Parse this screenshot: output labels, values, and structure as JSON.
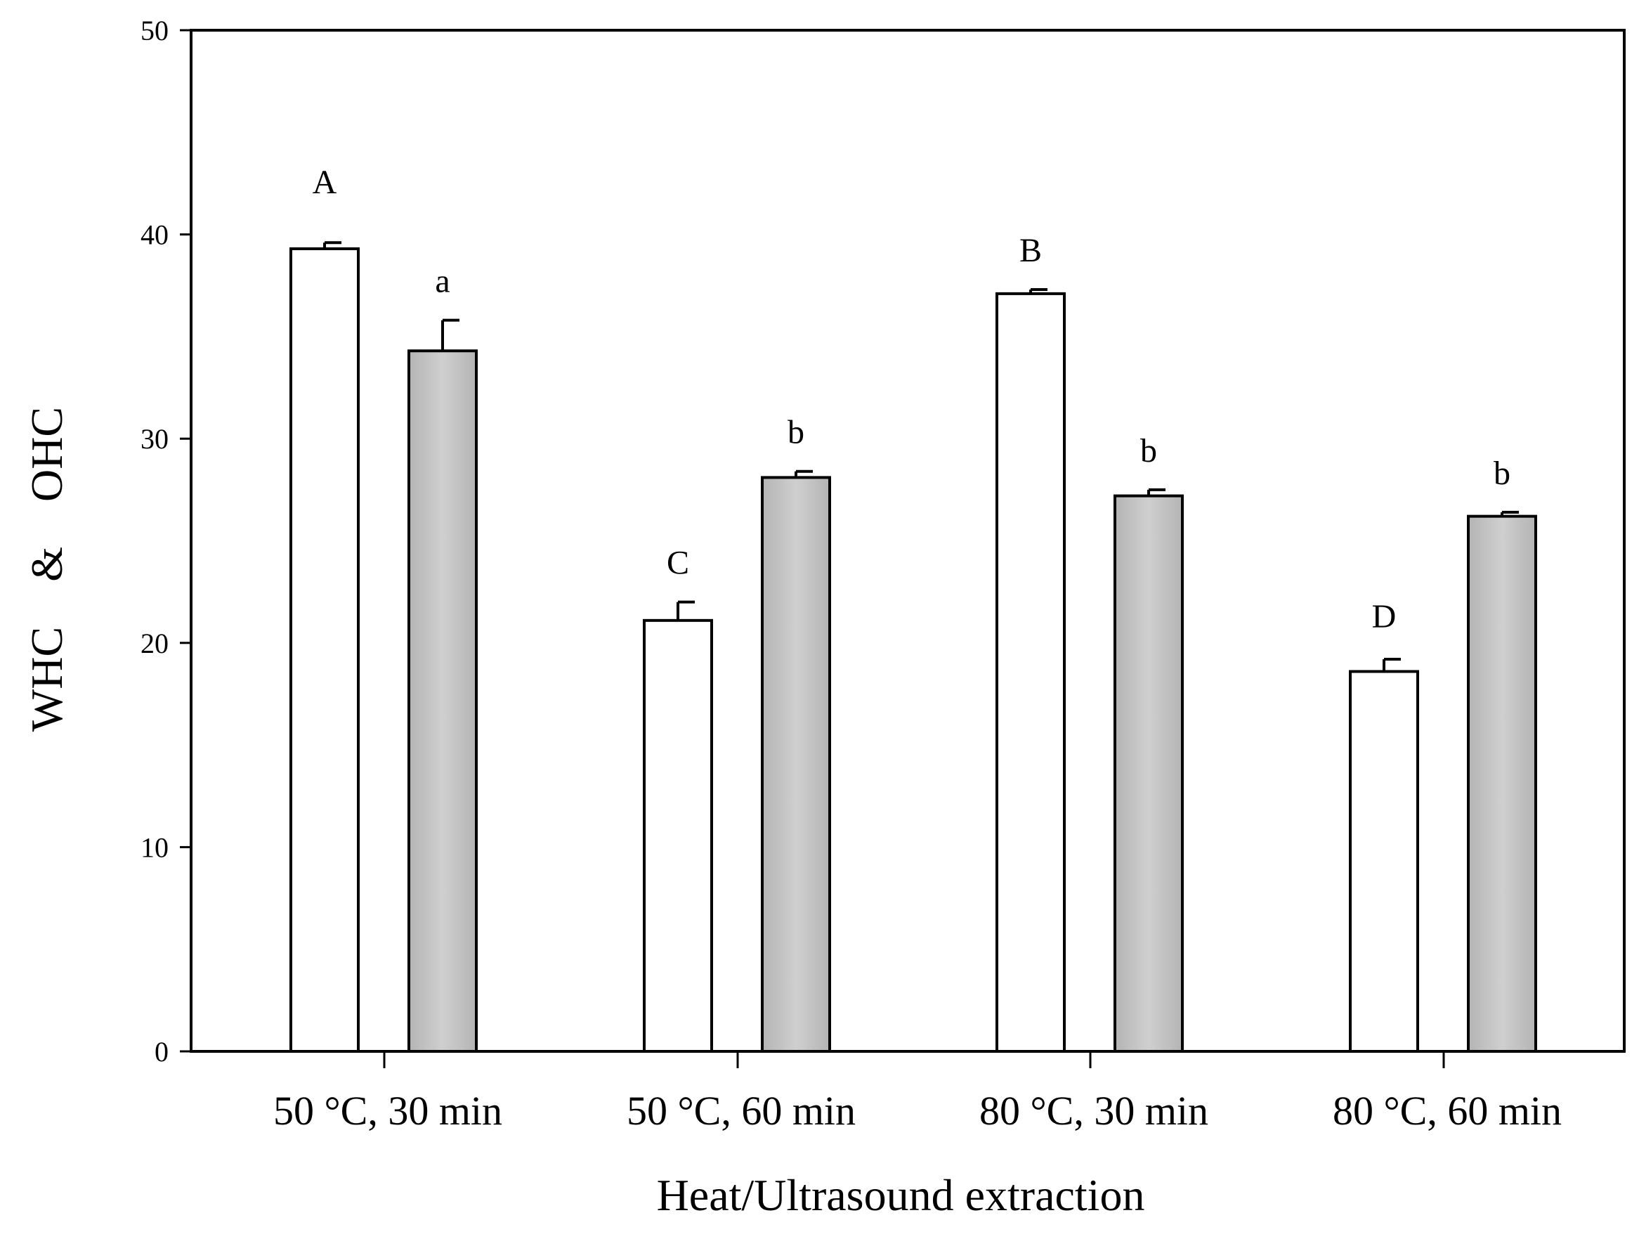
{
  "chart_data": {
    "type": "bar",
    "title": "",
    "xlabel": "Heat/Ultrasound extraction",
    "ylabel": "WHC    &    OHC",
    "ylim": [
      0,
      50
    ],
    "yticks": [
      "0",
      "10",
      "20",
      "30",
      "40",
      "50"
    ],
    "grid": false,
    "categories": [
      "50  °C, 30 min",
      "50  °C, 60 min",
      "80  °C, 30 min",
      "80  °C, 60 min"
    ],
    "series": [
      {
        "name": "WHC",
        "color": "#ffffff",
        "values": [
          39.3,
          21.1,
          37.1,
          18.6
        ],
        "errors": [
          0.3,
          0.9,
          0.2,
          0.6
        ],
        "labels": [
          "A",
          "C",
          "B",
          "D"
        ]
      },
      {
        "name": "OHC",
        "color": "#c0c0c0",
        "values": [
          34.3,
          28.1,
          27.2,
          26.2
        ],
        "errors": [
          1.5,
          0.3,
          0.3,
          0.2
        ],
        "labels": [
          "a",
          "b",
          "b",
          "b"
        ]
      }
    ]
  }
}
